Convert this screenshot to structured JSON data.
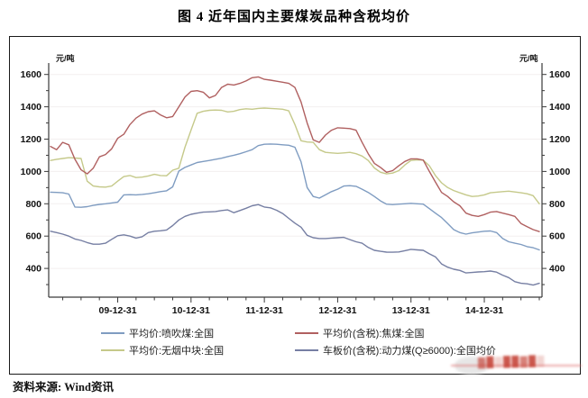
{
  "title": "图 4 近年国内主要煤炭品种含税均价",
  "source_note": "资料来源: Wind资讯",
  "watermark": {
    "description": "illegible red watermark stamp over bottom-right border",
    "glyphs": "▓█▒██▓█▒"
  },
  "chart_data": {
    "type": "line",
    "title": "图 4 近年国内主要煤炭品种含税均价",
    "y_axis": {
      "unit": "元/吨",
      "major_tick_labels": [
        1600,
        1400,
        1200,
        1000,
        800,
        600,
        400
      ],
      "minor_tick_step": 100,
      "minor_tick_min": 300,
      "minor_tick_max": 1600,
      "shown_on_both_sides": true
    },
    "x_axis": {
      "tick_labels": [
        "09-12-31",
        "10-12-31",
        "11-12-31",
        "12-12-31",
        "13-12-31",
        "14-12-31"
      ],
      "start_month": "2009-01",
      "end_month": "2015-09",
      "minor_tick_interval": "quarter"
    },
    "grid": {
      "horizontal_major_lines": [
        400,
        600,
        800,
        1000,
        1200,
        1400,
        1600
      ],
      "color": "#f3efef"
    },
    "legend_position": "bottom",
    "series": [
      {
        "name": "平均价:喷吹煤:全国",
        "color": "#7f9cc1",
        "values": [
          872,
          870,
          868,
          860,
          780,
          778,
          782,
          790,
          796,
          800,
          805,
          810,
          855,
          856,
          855,
          858,
          862,
          868,
          875,
          880,
          905,
          1002,
          1025,
          1040,
          1055,
          1062,
          1068,
          1075,
          1082,
          1092,
          1100,
          1110,
          1122,
          1135,
          1160,
          1168,
          1170,
          1168,
          1165,
          1162,
          1150,
          1060,
          900,
          845,
          835,
          855,
          875,
          890,
          910,
          912,
          908,
          890,
          870,
          845,
          818,
          798,
          795,
          798,
          800,
          803,
          800,
          798,
          770,
          742,
          715,
          678,
          640,
          622,
          612,
          620,
          625,
          630,
          632,
          622,
          585,
          565,
          556,
          548,
          535,
          528,
          515
        ]
      },
      {
        "name": "平均价:无烟中块:全国",
        "color": "#c5c98a",
        "values": [
          1068,
          1075,
          1080,
          1085,
          1083,
          1080,
          940,
          910,
          905,
          903,
          910,
          940,
          968,
          975,
          962,
          965,
          972,
          982,
          975,
          973,
          1008,
          1020,
          1150,
          1255,
          1360,
          1372,
          1378,
          1380,
          1378,
          1368,
          1372,
          1383,
          1388,
          1385,
          1390,
          1392,
          1390,
          1388,
          1385,
          1375,
          1290,
          1190,
          1182,
          1180,
          1135,
          1118,
          1115,
          1112,
          1115,
          1118,
          1110,
          1095,
          1068,
          1022,
          995,
          985,
          990,
          1005,
          1040,
          1068,
          1072,
          1070,
          1035,
          975,
          930,
          900,
          882,
          868,
          855,
          845,
          848,
          855,
          868,
          872,
          875,
          878,
          873,
          868,
          862,
          850,
          800
        ]
      },
      {
        "name": "车板价(含税):动力煤(Q≥6000):全国均价",
        "color": "#767fa3",
        "values": [
          630,
          622,
          612,
          600,
          582,
          573,
          560,
          550,
          550,
          556,
          580,
          602,
          608,
          600,
          588,
          596,
          622,
          630,
          633,
          638,
          665,
          700,
          722,
          735,
          742,
          748,
          750,
          752,
          758,
          762,
          745,
          758,
          772,
          788,
          795,
          780,
          775,
          760,
          740,
          710,
          680,
          655,
          605,
          590,
          585,
          585,
          588,
          590,
          592,
          578,
          565,
          556,
          530,
          512,
          506,
          501,
          500,
          502,
          510,
          518,
          515,
          512,
          490,
          472,
          428,
          408,
          395,
          388,
          372,
          375,
          378,
          380,
          384,
          377,
          358,
          343,
          318,
          308,
          305,
          297,
          308
        ]
      },
      {
        "name": "平均价(含税):焦煤:全国",
        "color": "#b06060",
        "values": [
          1155,
          1135,
          1180,
          1165,
          1075,
          1010,
          985,
          1020,
          1090,
          1105,
          1140,
          1205,
          1230,
          1290,
          1330,
          1355,
          1370,
          1375,
          1350,
          1332,
          1340,
          1400,
          1460,
          1495,
          1500,
          1490,
          1455,
          1470,
          1520,
          1540,
          1535,
          1545,
          1560,
          1580,
          1585,
          1570,
          1565,
          1558,
          1552,
          1545,
          1520,
          1430,
          1300,
          1195,
          1180,
          1225,
          1255,
          1270,
          1268,
          1265,
          1255,
          1180,
          1110,
          1050,
          1025,
          995,
          1005,
          1035,
          1062,
          1078,
          1078,
          1070,
          1000,
          935,
          870,
          845,
          812,
          788,
          742,
          728,
          722,
          733,
          748,
          752,
          742,
          733,
          722,
          678,
          658,
          640,
          628
        ]
      }
    ],
    "legend_items": [
      {
        "series_index": 0,
        "label": "平均价:喷吹煤:全国"
      },
      {
        "series_index": 3,
        "label": "平均价(含税):焦煤:全国"
      },
      {
        "series_index": 1,
        "label": "平均价:无烟中块:全国"
      },
      {
        "series_index": 2,
        "label": "车板价(含税):动力煤(Q≥6000):全国均价"
      }
    ]
  }
}
